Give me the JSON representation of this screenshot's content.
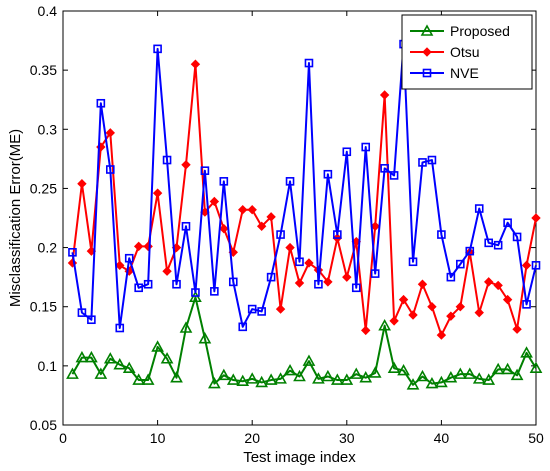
{
  "chart_data": {
    "type": "line",
    "title": "",
    "xlabel": "Test image index",
    "ylabel": "Misclassification Error(ME)",
    "xlim": [
      0,
      50
    ],
    "ylim": [
      0.05,
      0.4
    ],
    "xticks": [
      0,
      10,
      20,
      30,
      40,
      50
    ],
    "yticks": [
      0.05,
      0.1,
      0.15,
      0.2,
      0.25,
      0.3,
      0.35,
      0.4
    ],
    "ytick_labels": [
      "0.05",
      "0.1",
      "0.15",
      "0.2",
      "0.25",
      "0.3",
      "0.35",
      "0.4"
    ],
    "grid": false,
    "legend_position": "top-right",
    "x": [
      1,
      2,
      3,
      4,
      5,
      6,
      7,
      8,
      9,
      10,
      11,
      12,
      13,
      14,
      15,
      16,
      17,
      18,
      19,
      20,
      21,
      22,
      23,
      24,
      25,
      26,
      27,
      28,
      29,
      30,
      31,
      32,
      33,
      34,
      35,
      36,
      37,
      38,
      39,
      40,
      41,
      42,
      43,
      44,
      45,
      46,
      47,
      48,
      49,
      50
    ],
    "series": [
      {
        "name": "Proposed",
        "color": "#008000",
        "marker": "triangle",
        "values": [
          0.093,
          0.107,
          0.107,
          0.093,
          0.106,
          0.101,
          0.098,
          0.088,
          0.088,
          0.116,
          0.106,
          0.09,
          0.132,
          0.158,
          0.123,
          0.085,
          0.092,
          0.088,
          0.087,
          0.089,
          0.086,
          0.088,
          0.089,
          0.096,
          0.091,
          0.104,
          0.089,
          0.091,
          0.088,
          0.088,
          0.093,
          0.09,
          0.094,
          0.134,
          0.098,
          0.096,
          0.084,
          0.091,
          0.085,
          0.086,
          0.09,
          0.093,
          0.093,
          0.089,
          0.088,
          0.097,
          0.097,
          0.092,
          0.111,
          0.098
        ]
      },
      {
        "name": "Otsu",
        "color": "#ff0000",
        "marker": "diamond",
        "values": [
          0.187,
          0.254,
          0.197,
          0.285,
          0.297,
          0.185,
          0.18,
          0.201,
          0.201,
          0.246,
          0.18,
          0.2,
          0.27,
          0.355,
          0.23,
          0.239,
          0.216,
          0.196,
          0.232,
          0.232,
          0.218,
          0.226,
          0.148,
          0.2,
          0.17,
          0.187,
          0.181,
          0.171,
          0.208,
          0.175,
          0.205,
          0.13,
          0.218,
          0.329,
          0.138,
          0.156,
          0.143,
          0.169,
          0.15,
          0.126,
          0.142,
          0.15,
          0.196,
          0.145,
          0.171,
          0.168,
          0.156,
          0.131,
          0.185,
          0.225
        ]
      },
      {
        "name": "NVE",
        "color": "#0000ff",
        "marker": "square",
        "values": [
          0.196,
          0.145,
          0.139,
          0.322,
          0.266,
          0.132,
          0.191,
          0.166,
          0.169,
          0.368,
          0.274,
          0.169,
          0.218,
          0.162,
          0.265,
          0.163,
          0.256,
          0.171,
          0.133,
          0.148,
          0.146,
          0.175,
          0.211,
          0.256,
          0.188,
          0.356,
          0.169,
          0.262,
          0.211,
          0.281,
          0.166,
          0.285,
          0.178,
          0.267,
          0.261,
          0.372,
          0.188,
          0.272,
          0.274,
          0.211,
          0.175,
          0.186,
          0.197,
          0.233,
          0.204,
          0.202,
          0.221,
          0.209,
          0.152,
          0.185
        ]
      }
    ]
  }
}
